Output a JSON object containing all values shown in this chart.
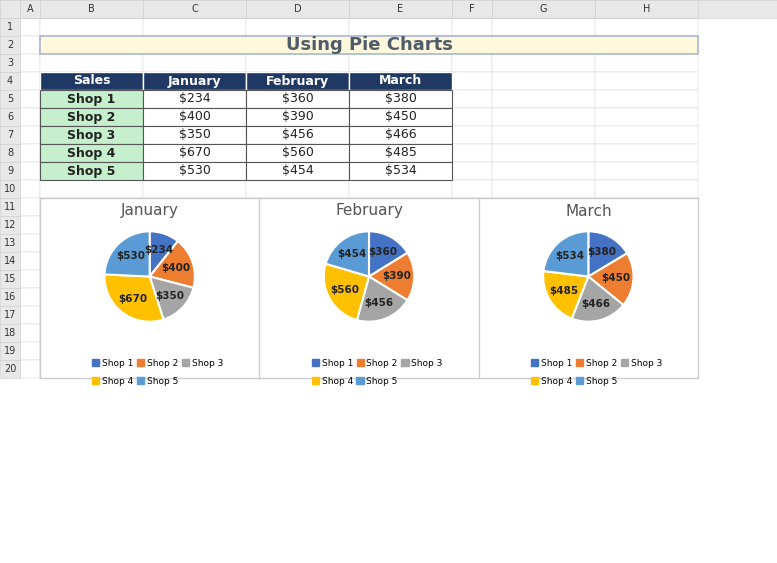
{
  "title": "Using Pie Charts",
  "title_bg": "#FFF8DC",
  "title_border": "#A8B8D0",
  "header_bg": "#1F3864",
  "header_text_color": "#FFFFFF",
  "row_bg": "#C6EFCE",
  "table_headers": [
    "Sales",
    "January",
    "February",
    "March"
  ],
  "shops": [
    "Shop 1",
    "Shop 2",
    "Shop 3",
    "Shop 4",
    "Shop 5"
  ],
  "january": [
    234,
    400,
    350,
    670,
    530
  ],
  "february": [
    360,
    390,
    456,
    560,
    454
  ],
  "march": [
    380,
    450,
    466,
    485,
    534
  ],
  "pie_colors": [
    "#4472C4",
    "#ED7D31",
    "#A5A5A5",
    "#FFC000",
    "#5B9BD5"
  ],
  "chart_titles": [
    "January",
    "February",
    "March"
  ],
  "legend_labels": [
    "Shop 1",
    "Shop 2",
    "Shop 3",
    "Shop 4",
    "Shop 5"
  ],
  "excel_col_header_bg": "#E8E8E8",
  "excel_row_header_bg": "#E8E8E8",
  "excel_bg": "#FFFFFF",
  "excel_grid_color": "#D0D0D0",
  "col_labels": [
    "A",
    "B",
    "C",
    "D",
    "E",
    "F",
    "G",
    "H"
  ],
  "row_labels": [
    "1",
    "2",
    "3",
    "4",
    "5",
    "6",
    "7",
    "8",
    "9",
    "10",
    "11",
    "12",
    "13",
    "14",
    "15",
    "16",
    "17",
    "18",
    "19",
    "20"
  ]
}
